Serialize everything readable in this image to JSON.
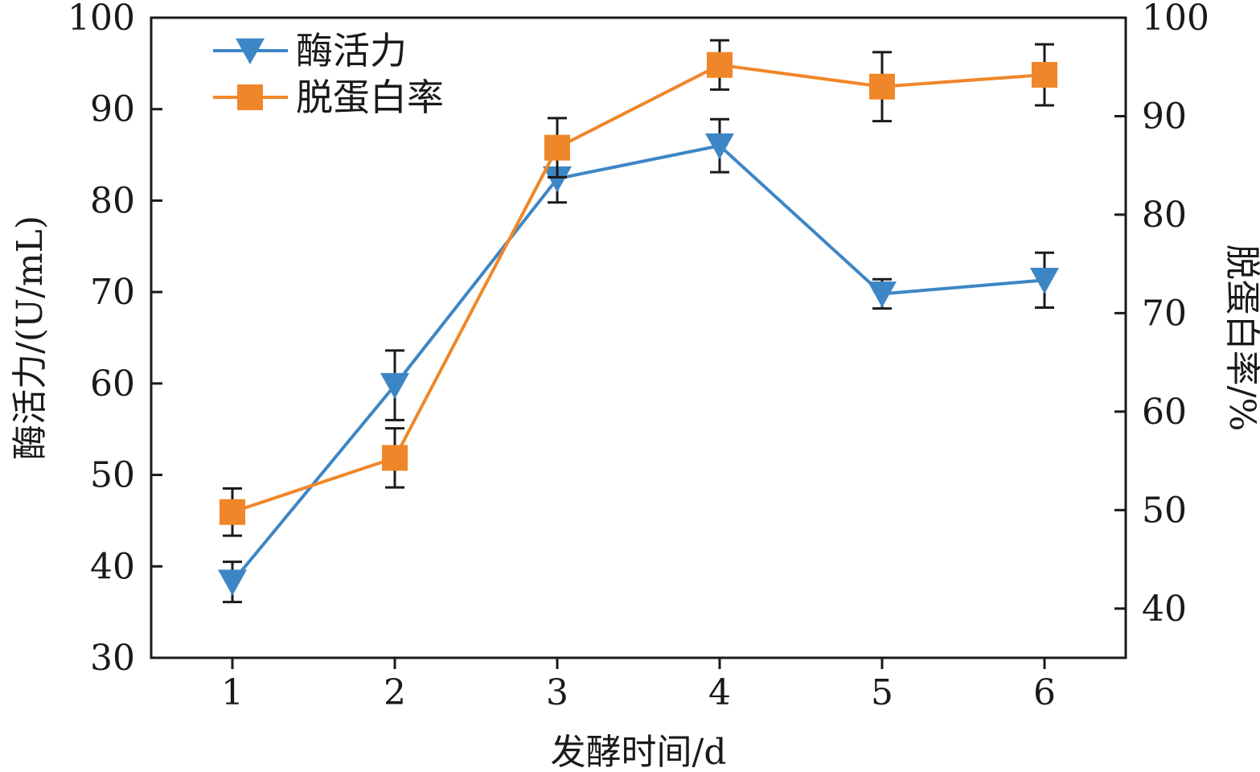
{
  "chart_data": {
    "type": "line",
    "xlabel": "发酵时间/d",
    "categories": [
      "1",
      "2",
      "3",
      "4",
      "5",
      "6"
    ],
    "y_left": {
      "label": "酶活力/(U/mL)",
      "lim": [
        30,
        100
      ],
      "ticks": [
        "30",
        "40",
        "50",
        "60",
        "70",
        "80",
        "90",
        "100"
      ]
    },
    "y_right": {
      "label": "脱蛋白率/%",
      "lim": [
        35,
        100
      ],
      "ticks": [
        "40",
        "50",
        "60",
        "70",
        "80",
        "90",
        "100"
      ]
    },
    "series": [
      {
        "name": "酶活力",
        "axis": "left",
        "marker": "triangle-down",
        "color": "#3d86c6",
        "values": [
          38.3,
          59.8,
          82.4,
          86.0,
          69.8,
          71.3
        ],
        "errors": [
          2.2,
          3.8,
          2.6,
          2.9,
          1.6,
          3.0
        ]
      },
      {
        "name": "脱蛋白率",
        "axis": "right",
        "marker": "square",
        "color": "#f0862a",
        "values": [
          49.8,
          55.3,
          86.8,
          95.2,
          93.0,
          94.2
        ],
        "errors": [
          2.4,
          3.0,
          3.0,
          2.5,
          3.5,
          3.1
        ]
      }
    ],
    "legend": {
      "position": "top-left"
    },
    "grid": false
  }
}
